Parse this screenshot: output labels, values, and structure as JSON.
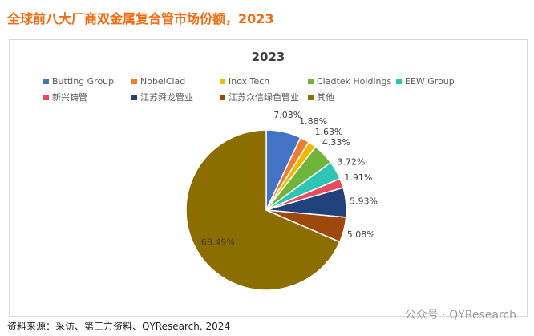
{
  "title": "全球前八大厂商双金属复合管市场份额，2023",
  "chart_data": {
    "type": "pie",
    "title": "2023",
    "legend_position": "top",
    "categories": [
      "Butting Group",
      "NobelClad",
      "Inox Tech",
      "Cladtek Holdings",
      "EEW Group",
      "新兴铸管",
      "江苏舜龙管业",
      "江苏众信绿色管业",
      "其他"
    ],
    "values": [
      7.03,
      1.88,
      1.63,
      4.33,
      3.72,
      1.91,
      5.93,
      5.08,
      68.49
    ],
    "labels": [
      "7.03%",
      "1.88%",
      "1.63%",
      "4.33%",
      "3.72%",
      "1.91%",
      "5.93%",
      "5.08%",
      "68.49%"
    ],
    "colors": [
      "#4472c4",
      "#ed7d31",
      "#f5b800",
      "#70b43c",
      "#2ec4b6",
      "#e84a5f",
      "#22427c",
      "#9e480e",
      "#8c6d00"
    ]
  },
  "watermark": "公众号 · QYResearch",
  "source": "资料来源：采访、第三方资料、QYResearch, 2024"
}
